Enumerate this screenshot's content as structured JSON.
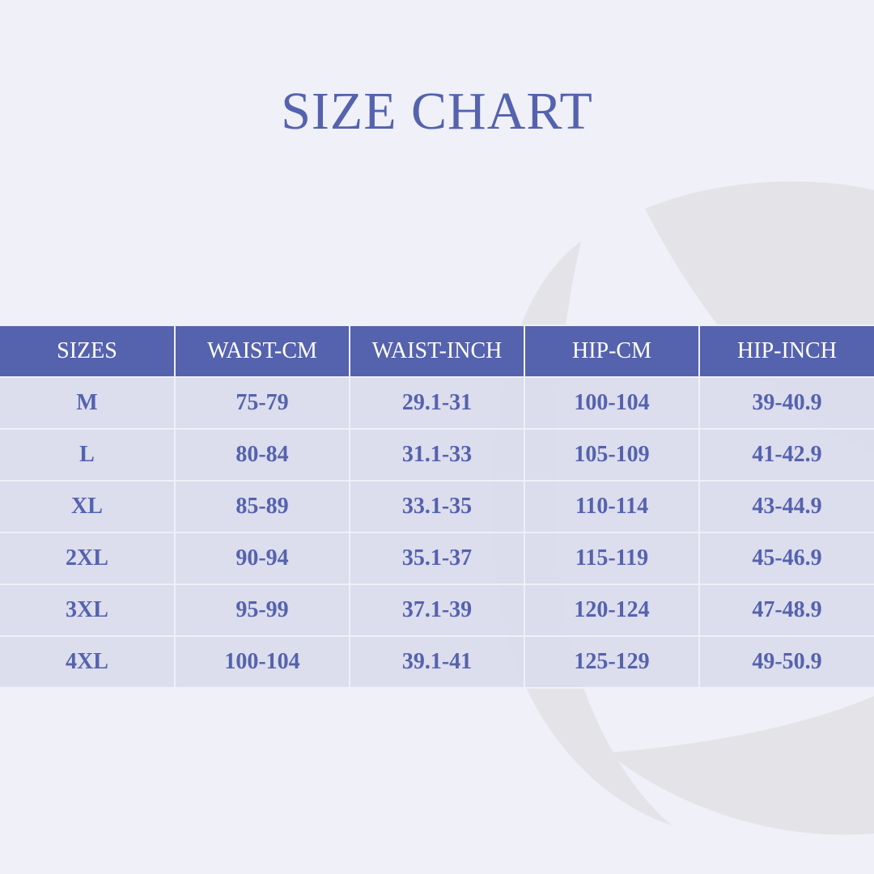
{
  "title": "SIZE CHART",
  "table": {
    "headers": [
      "SIZES",
      "WAIST-CM",
      "WAIST-INCH",
      "HIP-CM",
      "HIP-INCH"
    ],
    "rows": [
      [
        "M",
        "75-79",
        "29.1-31",
        "100-104",
        "39-40.9"
      ],
      [
        "L",
        "80-84",
        "31.1-33",
        "105-109",
        "41-42.9"
      ],
      [
        "XL",
        "85-89",
        "33.1-35",
        "110-114",
        "43-44.9"
      ],
      [
        "2XL",
        "90-94",
        "35.1-37",
        "115-119",
        "45-46.9"
      ],
      [
        "3XL",
        "95-99",
        "37.1-39",
        "120-124",
        "47-48.9"
      ],
      [
        "4XL",
        "100-104",
        "39.1-41",
        "125-129",
        "49-50.9"
      ]
    ]
  },
  "colors": {
    "accent": "#5562ad",
    "background": "#eff0f8",
    "cell": "#dedfee",
    "watermark": "#e4e4e8"
  }
}
